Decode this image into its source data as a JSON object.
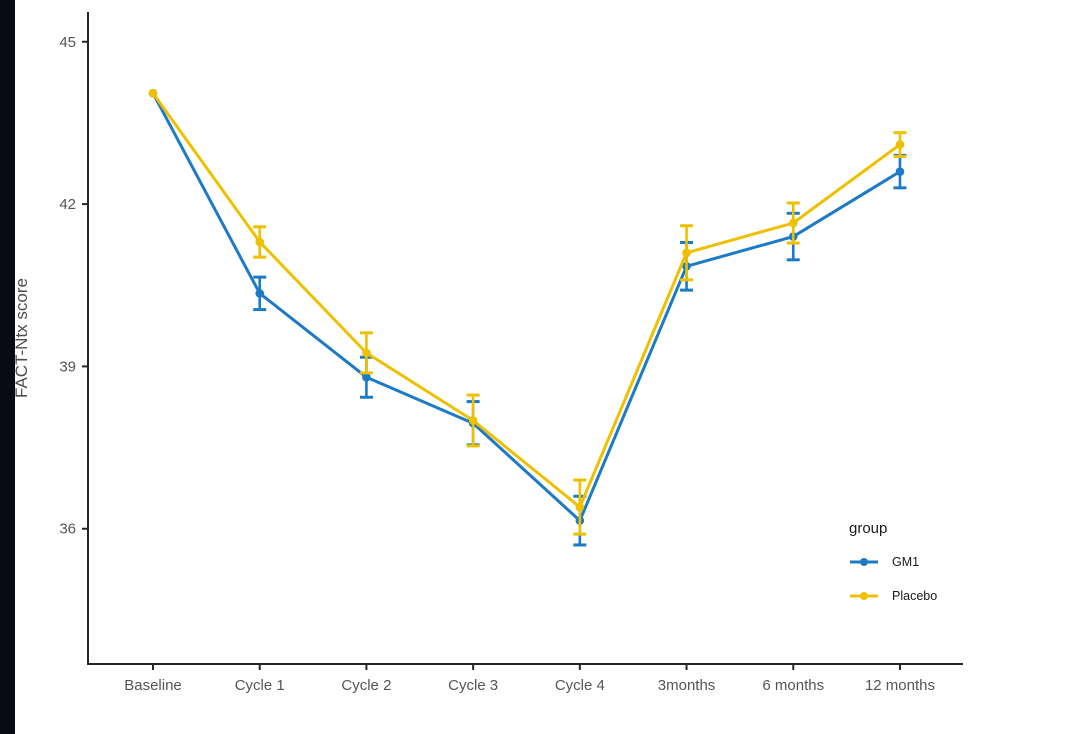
{
  "decor": {
    "left_bar_color": "#0a0a14",
    "axis_color": "#262626",
    "tick_label_color": "#555555"
  },
  "chart_data": {
    "type": "line",
    "title": "",
    "xlabel": "",
    "ylabel": "FACT-Ntx score",
    "categories": [
      "Baseline",
      "Cycle 1",
      "Cycle 2",
      "Cycle 3",
      "Cycle 4",
      "3months",
      "6 months",
      "12 months"
    ],
    "y_axis": {
      "min": 33.5,
      "max": 45.55,
      "ticks": [
        36,
        39,
        42,
        45
      ]
    },
    "grid": false,
    "error_bars": true,
    "series": [
      {
        "name": "GM1",
        "color": "#1c7ac6",
        "values": [
          44.05,
          40.35,
          38.8,
          37.95,
          36.15,
          40.85,
          41.4,
          42.6
        ],
        "errors": [
          0,
          0.3,
          0.37,
          0.4,
          0.45,
          0.44,
          0.43,
          0.3
        ]
      },
      {
        "name": "Placebo",
        "color": "#efc000",
        "values": [
          44.05,
          41.3,
          39.25,
          38.0,
          36.4,
          41.1,
          41.65,
          43.1
        ],
        "errors": [
          0,
          0.28,
          0.37,
          0.47,
          0.5,
          0.5,
          0.37,
          0.22
        ]
      }
    ],
    "legend": {
      "title": "group",
      "position": "inside-bottom-right"
    }
  }
}
